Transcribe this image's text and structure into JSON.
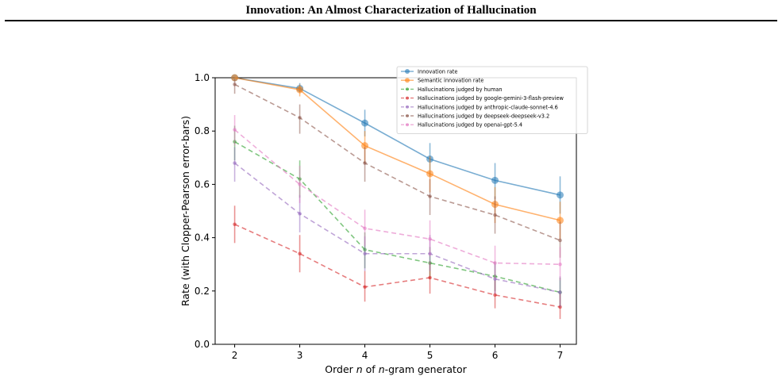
{
  "page": {
    "header_title": "Innovation: An Almost Characterization of Hallucination"
  },
  "chart_data": {
    "type": "line",
    "title": "",
    "xlabel_parts": [
      "Order ",
      "n",
      " of ",
      "n",
      "-gram generator"
    ],
    "ylabel": "Rate (with Clopper-Pearson error-bars)",
    "x": [
      2,
      3,
      4,
      5,
      6,
      7
    ],
    "xlim": [
      1.7,
      7.25
    ],
    "ylim": [
      0.0,
      1.0
    ],
    "x_ticks": [
      "2",
      "3",
      "4",
      "5",
      "6",
      "7"
    ],
    "y_ticks": [
      "0.0",
      "0.2",
      "0.4",
      "0.6",
      "0.8",
      "1.0"
    ],
    "grid": false,
    "legend_position": "top-right",
    "series": [
      {
        "name": "Innovation rate",
        "color": "#1f77b4",
        "marker": "circle-large",
        "linestyle": "solid",
        "values": [
          1.0,
          0.96,
          0.83,
          0.695,
          0.615,
          0.56
        ],
        "err_low": [
          1.0,
          0.945,
          0.78,
          0.63,
          0.545,
          0.49
        ],
        "err_high": [
          1.0,
          0.98,
          0.88,
          0.755,
          0.68,
          0.63
        ]
      },
      {
        "name": "Semantic innovation rate",
        "color": "#ff7f0e",
        "marker": "circle-large",
        "linestyle": "solid",
        "values": [
          1.0,
          0.955,
          0.745,
          0.64,
          0.525,
          0.465
        ],
        "err_low": [
          1.0,
          0.93,
          0.68,
          0.57,
          0.455,
          0.395
        ],
        "err_high": [
          1.0,
          0.975,
          0.8,
          0.705,
          0.59,
          0.535
        ]
      },
      {
        "name": "Hallucinations judged by human",
        "color": "#2ca02c",
        "marker": "dot",
        "linestyle": "dashed",
        "values": [
          0.76,
          0.62,
          0.355,
          0.305,
          0.255,
          0.195
        ],
        "err_low": [
          0.69,
          0.55,
          0.285,
          0.245,
          0.2,
          0.14
        ],
        "err_high": [
          0.82,
          0.69,
          0.42,
          0.365,
          0.31,
          0.25
        ]
      },
      {
        "name": "Hallucinations judged by google-gemini-3-flash-preview",
        "color": "#d62728",
        "marker": "dot",
        "linestyle": "dashed",
        "values": [
          0.45,
          0.34,
          0.215,
          0.25,
          0.185,
          0.14
        ],
        "err_low": [
          0.38,
          0.27,
          0.16,
          0.19,
          0.135,
          0.095
        ],
        "err_high": [
          0.52,
          0.41,
          0.275,
          0.31,
          0.24,
          0.19
        ]
      },
      {
        "name": "Hallucinations judged by anthropic-claude-sonnet-4.6",
        "color": "#9467bd",
        "marker": "dot",
        "linestyle": "dashed",
        "values": [
          0.68,
          0.49,
          0.34,
          0.34,
          0.245,
          0.195
        ],
        "err_low": [
          0.61,
          0.42,
          0.275,
          0.275,
          0.19,
          0.14
        ],
        "err_high": [
          0.74,
          0.56,
          0.405,
          0.41,
          0.305,
          0.255
        ]
      },
      {
        "name": "Hallucinations judged by deepseek-deepseek-v3.2",
        "color": "#8c564b",
        "marker": "dot",
        "linestyle": "dashed",
        "values": [
          0.975,
          0.85,
          0.68,
          0.555,
          0.485,
          0.39
        ],
        "err_low": [
          0.94,
          0.79,
          0.61,
          0.485,
          0.415,
          0.325
        ],
        "err_high": [
          0.995,
          0.9,
          0.74,
          0.62,
          0.555,
          0.46
        ]
      },
      {
        "name": "Hallucinations judged by openai-gpt-5.4",
        "color": "#e377c2",
        "marker": "dot",
        "linestyle": "dashed",
        "values": [
          0.805,
          0.6,
          0.435,
          0.395,
          0.305,
          0.3
        ],
        "err_low": [
          0.745,
          0.53,
          0.37,
          0.33,
          0.245,
          0.24
        ],
        "err_high": [
          0.86,
          0.67,
          0.505,
          0.465,
          0.37,
          0.365
        ]
      }
    ]
  }
}
